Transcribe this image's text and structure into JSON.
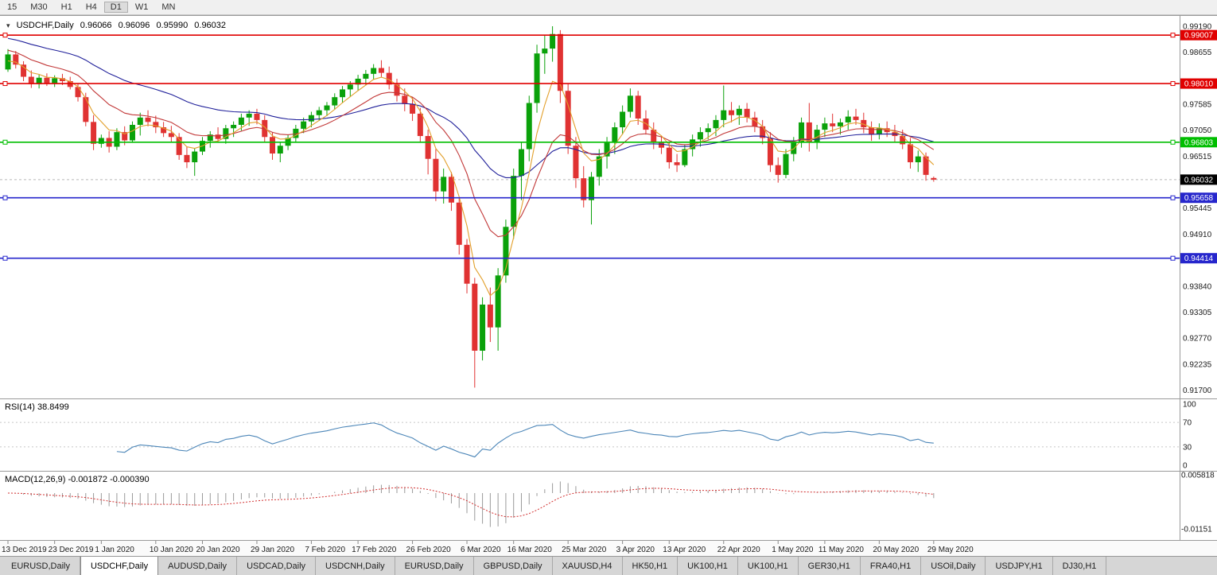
{
  "toolbar": {
    "timeframes": [
      {
        "label": "15",
        "active": false
      },
      {
        "label": "M30",
        "active": false
      },
      {
        "label": "H1",
        "active": false
      },
      {
        "label": "H4",
        "active": false
      },
      {
        "label": "D1",
        "active": true
      },
      {
        "label": "W1",
        "active": false
      },
      {
        "label": "MN",
        "active": false
      }
    ]
  },
  "chart_window": {
    "symbol_label": "USDCHF,Daily",
    "ohlc": {
      "open": "0.96066",
      "high": "0.96096",
      "low": "0.95990",
      "close": "0.96032"
    },
    "current_price": {
      "label": "0.96032",
      "price": 0.96032,
      "badge_color": "#000000"
    },
    "hlines": [
      {
        "price": 0.99007,
        "label": "0.99007",
        "color": "#E00000"
      },
      {
        "price": 0.9801,
        "label": "0.98010",
        "color": "#E00000"
      },
      {
        "price": 0.96803,
        "label": "0.96803",
        "color": "#00BE00"
      },
      {
        "price": 0.95658,
        "label": "0.95658",
        "color": "#2626CC"
      },
      {
        "price": 0.94414,
        "label": "0.94414",
        "color": "#2626CC"
      }
    ],
    "y_axis_labels": [
      "0.99190",
      "0.98655",
      "0.97585",
      "0.97050",
      "0.96515",
      "0.95445",
      "0.94910",
      "0.93840",
      "0.93305",
      "0.92770",
      "0.92235",
      "0.91700"
    ],
    "x_axis_labels": [
      {
        "index": 0,
        "label": "13 Dec 2019"
      },
      {
        "index": 6,
        "label": "23 Dec 2019"
      },
      {
        "index": 12,
        "label": "1 Jan 2020"
      },
      {
        "index": 19,
        "label": "10 Jan 2020"
      },
      {
        "index": 25,
        "label": "20 Jan 2020"
      },
      {
        "index": 32,
        "label": "29 Jan 2020"
      },
      {
        "index": 39,
        "label": "7 Feb 2020"
      },
      {
        "index": 45,
        "label": "17 Feb 2020"
      },
      {
        "index": 52,
        "label": "26 Feb 2020"
      },
      {
        "index": 59,
        "label": "6 Mar 2020"
      },
      {
        "index": 65,
        "label": "16 Mar 2020"
      },
      {
        "index": 72,
        "label": "25 Mar 2020"
      },
      {
        "index": 79,
        "label": "3 Apr 2020"
      },
      {
        "index": 85,
        "label": "13 Apr 2020"
      },
      {
        "index": 92,
        "label": "22 Apr 2020"
      },
      {
        "index": 99,
        "label": "1 May 2020"
      },
      {
        "index": 105,
        "label": "11 May 2020"
      },
      {
        "index": 112,
        "label": "20 May 2020"
      },
      {
        "index": 119,
        "label": "29 May 2020"
      }
    ],
    "rsi_label": "RSI(14) 38.8499",
    "rsi_axis_labels": [
      "100",
      "70",
      "30",
      "0"
    ],
    "macd_label": "MACD(12,26,9) -0.001872 -0.000390",
    "macd_axis_labels": [
      "0.005818",
      "-0.01151"
    ],
    "colors": {
      "candle_up": "#0AA10A",
      "candle_down": "#E03232",
      "rsi_line": "#4C86B8",
      "macd_hist": "#9A9A9A",
      "macd_signal": "#D23030",
      "bid_line": "#B8B8B8"
    }
  },
  "chart_data": {
    "type": "candlestick",
    "symbol": "USDCHF",
    "timeframe": "Daily",
    "visible_price_range": [
      0.9167,
      0.9919
    ],
    "indicators": {
      "rsi_period": 14,
      "rsi_last": 38.8499,
      "macd_params": [
        12,
        26,
        9
      ],
      "macd_last": [
        -0.001872,
        -0.00039
      ],
      "moving_averages": [
        {
          "period": 5,
          "color": "#E2A02C"
        },
        {
          "period": 13,
          "color": "#C23838"
        },
        {
          "period": 34,
          "color": "#20209A"
        }
      ]
    },
    "ohlc_candles": [
      [
        0.983,
        0.9872,
        0.9825,
        0.9861
      ],
      [
        0.9861,
        0.9868,
        0.9832,
        0.984
      ],
      [
        0.984,
        0.9847,
        0.9806,
        0.9815
      ],
      [
        0.9815,
        0.9828,
        0.9792,
        0.98
      ],
      [
        0.98,
        0.9819,
        0.9791,
        0.9813
      ],
      [
        0.9813,
        0.9822,
        0.9796,
        0.9802
      ],
      [
        0.9802,
        0.9818,
        0.9794,
        0.9812
      ],
      [
        0.9812,
        0.9821,
        0.9798,
        0.9806
      ],
      [
        0.9806,
        0.9815,
        0.9789,
        0.9794
      ],
      [
        0.9794,
        0.9801,
        0.9764,
        0.9773
      ],
      [
        0.9773,
        0.9782,
        0.9713,
        0.9722
      ],
      [
        0.9722,
        0.9736,
        0.9664,
        0.9677
      ],
      [
        0.9677,
        0.9696,
        0.9669,
        0.9689
      ],
      [
        0.9689,
        0.9703,
        0.9659,
        0.9671
      ],
      [
        0.9671,
        0.9709,
        0.9664,
        0.9701
      ],
      [
        0.9701,
        0.9713,
        0.9674,
        0.9684
      ],
      [
        0.9684,
        0.9723,
        0.9679,
        0.9716
      ],
      [
        0.9716,
        0.9741,
        0.9694,
        0.9731
      ],
      [
        0.9731,
        0.9746,
        0.9713,
        0.9722
      ],
      [
        0.9722,
        0.9735,
        0.9699,
        0.9711
      ],
      [
        0.9711,
        0.9722,
        0.9691,
        0.9699
      ],
      [
        0.9699,
        0.9714,
        0.9681,
        0.9691
      ],
      [
        0.9691,
        0.9699,
        0.9644,
        0.9654
      ],
      [
        0.9654,
        0.9671,
        0.9627,
        0.9639
      ],
      [
        0.9639,
        0.9667,
        0.9611,
        0.9661
      ],
      [
        0.9661,
        0.9691,
        0.9654,
        0.9683
      ],
      [
        0.9683,
        0.9703,
        0.9669,
        0.9696
      ],
      [
        0.9696,
        0.9711,
        0.9679,
        0.9687
      ],
      [
        0.9687,
        0.9716,
        0.9677,
        0.9709
      ],
      [
        0.9709,
        0.9723,
        0.9691,
        0.9716
      ],
      [
        0.9716,
        0.9739,
        0.9704,
        0.9731
      ],
      [
        0.9731,
        0.9746,
        0.9714,
        0.9739
      ],
      [
        0.9739,
        0.9749,
        0.9717,
        0.9726
      ],
      [
        0.9726,
        0.9736,
        0.9681,
        0.9691
      ],
      [
        0.9691,
        0.9701,
        0.9644,
        0.9657
      ],
      [
        0.9657,
        0.9681,
        0.9639,
        0.9673
      ],
      [
        0.9673,
        0.9696,
        0.9664,
        0.9689
      ],
      [
        0.9689,
        0.9716,
        0.9679,
        0.9708
      ],
      [
        0.9708,
        0.9731,
        0.9699,
        0.9723
      ],
      [
        0.9723,
        0.9743,
        0.9711,
        0.9736
      ],
      [
        0.9736,
        0.9753,
        0.9724,
        0.9746
      ],
      [
        0.9746,
        0.9763,
        0.9734,
        0.9756
      ],
      [
        0.9756,
        0.9781,
        0.9747,
        0.9773
      ],
      [
        0.9773,
        0.9796,
        0.9761,
        0.9789
      ],
      [
        0.9789,
        0.9806,
        0.9774,
        0.9799
      ],
      [
        0.9799,
        0.9819,
        0.9787,
        0.9811
      ],
      [
        0.9811,
        0.9829,
        0.9797,
        0.9821
      ],
      [
        0.9821,
        0.9841,
        0.9809,
        0.9833
      ],
      [
        0.9833,
        0.9849,
        0.9814,
        0.9823
      ],
      [
        0.9823,
        0.9836,
        0.9789,
        0.9799
      ],
      [
        0.9799,
        0.9811,
        0.9764,
        0.9776
      ],
      [
        0.9776,
        0.9791,
        0.9744,
        0.9759
      ],
      [
        0.9759,
        0.9773,
        0.9724,
        0.9739
      ],
      [
        0.9739,
        0.9751,
        0.9679,
        0.9693
      ],
      [
        0.9693,
        0.9706,
        0.9614,
        0.9646
      ],
      [
        0.9646,
        0.9666,
        0.9559,
        0.9579
      ],
      [
        0.9579,
        0.9626,
        0.9554,
        0.9609
      ],
      [
        0.9609,
        0.9619,
        0.9539,
        0.9556
      ],
      [
        0.9556,
        0.9566,
        0.9449,
        0.9469
      ],
      [
        0.9469,
        0.9481,
        0.9369,
        0.9389
      ],
      [
        0.9389,
        0.9401,
        0.9175,
        0.9251
      ],
      [
        0.9251,
        0.9361,
        0.9231,
        0.9346
      ],
      [
        0.9346,
        0.9381,
        0.9269,
        0.9299
      ],
      [
        0.9299,
        0.9421,
        0.9251,
        0.9406
      ],
      [
        0.9406,
        0.9521,
        0.9391,
        0.9506
      ],
      [
        0.9506,
        0.9626,
        0.9481,
        0.9611
      ],
      [
        0.9611,
        0.9681,
        0.9561,
        0.9666
      ],
      [
        0.9666,
        0.9776,
        0.9641,
        0.9761
      ],
      [
        0.9761,
        0.9881,
        0.9741,
        0.9863
      ],
      [
        0.9863,
        0.9901,
        0.9821,
        0.9873
      ],
      [
        0.9873,
        0.9919,
        0.9846,
        0.9903
      ],
      [
        0.9903,
        0.9911,
        0.9761,
        0.9786
      ],
      [
        0.9786,
        0.9801,
        0.9656,
        0.9673
      ],
      [
        0.9673,
        0.9691,
        0.9586,
        0.9606
      ],
      [
        0.9606,
        0.9631,
        0.9546,
        0.9561
      ],
      [
        0.9561,
        0.9619,
        0.9511,
        0.9609
      ],
      [
        0.9609,
        0.9666,
        0.9591,
        0.9651
      ],
      [
        0.9651,
        0.9691,
        0.9626,
        0.9679
      ],
      [
        0.9679,
        0.9721,
        0.9656,
        0.9711
      ],
      [
        0.9711,
        0.9756,
        0.9696,
        0.9743
      ],
      [
        0.9743,
        0.9791,
        0.9731,
        0.9776
      ],
      [
        0.9776,
        0.9786,
        0.9716,
        0.9729
      ],
      [
        0.9729,
        0.9746,
        0.9696,
        0.9706
      ],
      [
        0.9706,
        0.9721,
        0.9666,
        0.9679
      ],
      [
        0.9679,
        0.9693,
        0.9656,
        0.9669
      ],
      [
        0.9669,
        0.9679,
        0.9626,
        0.9639
      ],
      [
        0.9639,
        0.9656,
        0.9619,
        0.9633
      ],
      [
        0.9633,
        0.9676,
        0.9629,
        0.9666
      ],
      [
        0.9666,
        0.9696,
        0.9651,
        0.9686
      ],
      [
        0.9686,
        0.9711,
        0.9671,
        0.9701
      ],
      [
        0.9701,
        0.9719,
        0.9686,
        0.9709
      ],
      [
        0.9709,
        0.9736,
        0.9693,
        0.9726
      ],
      [
        0.9726,
        0.9797,
        0.9711,
        0.9746
      ],
      [
        0.9746,
        0.9763,
        0.9721,
        0.9736
      ],
      [
        0.9736,
        0.9756,
        0.9716,
        0.9749
      ],
      [
        0.9749,
        0.9761,
        0.9721,
        0.9731
      ],
      [
        0.9731,
        0.9743,
        0.9701,
        0.9713
      ],
      [
        0.9713,
        0.9726,
        0.9676,
        0.9689
      ],
      [
        0.9689,
        0.9701,
        0.9619,
        0.9633
      ],
      [
        0.9633,
        0.9649,
        0.9597,
        0.9613
      ],
      [
        0.9613,
        0.9666,
        0.9606,
        0.9656
      ],
      [
        0.9656,
        0.9691,
        0.9641,
        0.9679
      ],
      [
        0.9679,
        0.9731,
        0.9669,
        0.9721
      ],
      [
        0.9721,
        0.9761,
        0.9661,
        0.9681
      ],
      [
        0.9681,
        0.9716,
        0.9666,
        0.9706
      ],
      [
        0.9706,
        0.9731,
        0.9691,
        0.9719
      ],
      [
        0.9719,
        0.9739,
        0.9701,
        0.9713
      ],
      [
        0.9713,
        0.9729,
        0.9696,
        0.9721
      ],
      [
        0.9721,
        0.9746,
        0.9706,
        0.9733
      ],
      [
        0.9733,
        0.9749,
        0.9716,
        0.9726
      ],
      [
        0.9726,
        0.9741,
        0.9699,
        0.9711
      ],
      [
        0.9711,
        0.9723,
        0.9683,
        0.9696
      ],
      [
        0.9696,
        0.9719,
        0.9686,
        0.9709
      ],
      [
        0.9709,
        0.9723,
        0.9691,
        0.9701
      ],
      [
        0.9701,
        0.9716,
        0.9681,
        0.9693
      ],
      [
        0.9693,
        0.9706,
        0.9666,
        0.9676
      ],
      [
        0.9676,
        0.9689,
        0.9626,
        0.9639
      ],
      [
        0.9639,
        0.9663,
        0.9619,
        0.9651
      ],
      [
        0.9651,
        0.9659,
        0.9601,
        0.9613
      ],
      [
        0.96066,
        0.96096,
        0.9599,
        0.96032
      ]
    ]
  },
  "bottom_tabs": [
    {
      "label": "EURUSD,Daily",
      "active": false
    },
    {
      "label": "USDCHF,Daily",
      "active": true
    },
    {
      "label": "AUDUSD,Daily",
      "active": false
    },
    {
      "label": "USDCAD,Daily",
      "active": false
    },
    {
      "label": "USDCNH,Daily",
      "active": false
    },
    {
      "label": "EURUSD,Daily",
      "active": false
    },
    {
      "label": "GBPUSD,Daily",
      "active": false
    },
    {
      "label": "XAUUSD,H4",
      "active": false
    },
    {
      "label": "HK50,H1",
      "active": false
    },
    {
      "label": "UK100,H1",
      "active": false
    },
    {
      "label": "UK100,H1",
      "active": false
    },
    {
      "label": "GER30,H1",
      "active": false
    },
    {
      "label": "FRA40,H1",
      "active": false
    },
    {
      "label": "USOil,Daily",
      "active": false
    },
    {
      "label": "USDJPY,H1",
      "active": false
    },
    {
      "label": "DJ30,H1",
      "active": false
    }
  ]
}
